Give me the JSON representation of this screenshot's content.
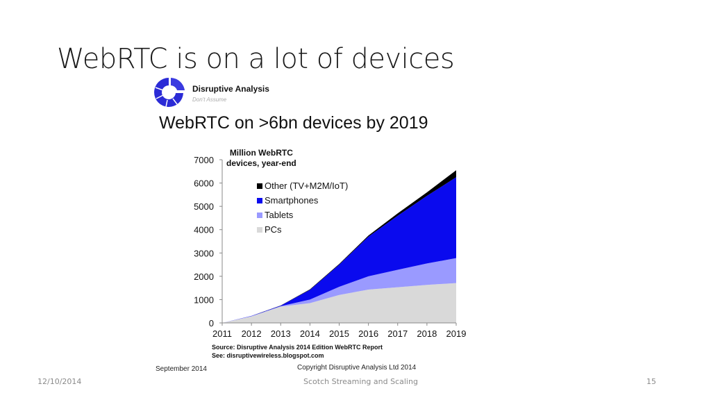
{
  "slide": {
    "title": "WebRTC is on a lot of devices",
    "footer_date": "12/10/2014",
    "footer_center": "Scotch Streaming and Scaling",
    "page_number": "15"
  },
  "brand": {
    "name": "Disruptive Analysis",
    "tagline": "Don't Assume"
  },
  "embedded": {
    "heading": "WebRTC on >6bn devices by 2019",
    "source_line": "Source: Disruptive Analysis 2014 Edition WebRTC Report",
    "see_line": "See: disruptivewireless.blogspot.com",
    "date": "September 2014",
    "copyright": "Copyright Disruptive Analysis Ltd 2014"
  },
  "chart_data": {
    "type": "area",
    "stacked": true,
    "title": "WebRTC on >6bn devices by 2019",
    "ylabel": "Million WebRTC devices, year-end",
    "unit_label_lines": [
      "Million  WebRTC",
      "devices, year-end"
    ],
    "xlabel": "",
    "x": [
      "2011",
      "2012",
      "2013",
      "2014",
      "2015",
      "2016",
      "2017",
      "2018",
      "2019"
    ],
    "ylim": [
      0,
      7000
    ],
    "yticks": [
      "0",
      "1000",
      "2000",
      "3000",
      "4000",
      "5000",
      "6000",
      "7000"
    ],
    "grid": false,
    "legend_position": "top-left",
    "series": [
      {
        "name": "PCs",
        "color": "#d9d9d9",
        "values": [
          0,
          280,
          700,
          850,
          1200,
          1430,
          1530,
          1630,
          1710
        ]
      },
      {
        "name": "Tablets",
        "color": "#9a9aff",
        "values": [
          0,
          10,
          20,
          150,
          350,
          570,
          750,
          920,
          1070
        ]
      },
      {
        "name": "Smartphones",
        "color": "#0a0aee",
        "values": [
          0,
          10,
          20,
          420,
          950,
          1700,
          2320,
          2900,
          3470
        ]
      },
      {
        "name": "Other (TV+M2M/IoT)",
        "color": "#000000",
        "values": [
          0,
          0,
          10,
          20,
          30,
          50,
          100,
          150,
          300
        ]
      }
    ],
    "legend_order": [
      "Other (TV+M2M/IoT)",
      "Smartphones",
      "Tablets",
      "PCs"
    ]
  }
}
